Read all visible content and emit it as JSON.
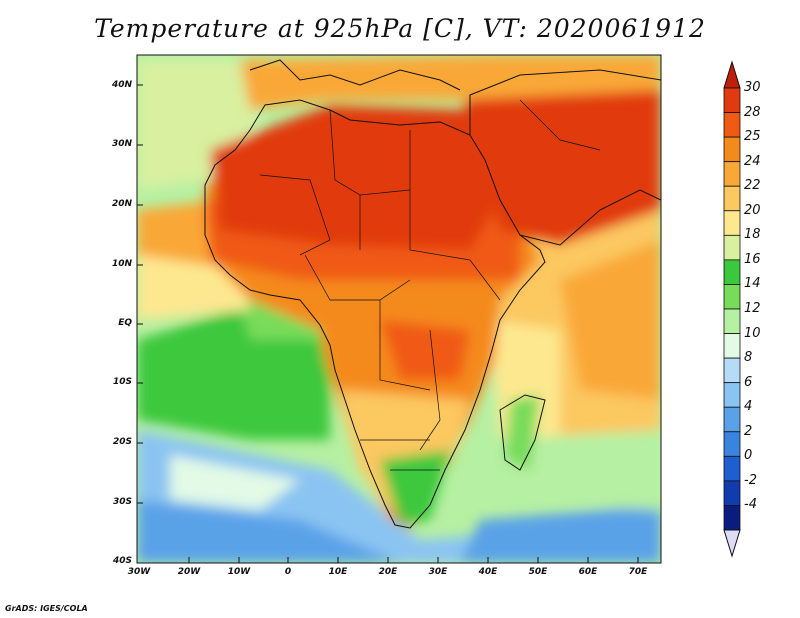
{
  "title": "Temperature at 925hPa [C], VT: 2020061912",
  "credit": "GrADS: IGES/COLA",
  "lat_labels": [
    "40N",
    "30N",
    "20N",
    "10N",
    "EQ",
    "10S",
    "20S",
    "30S",
    "40S"
  ],
  "lon_labels": [
    "30W",
    "20W",
    "10W",
    "0",
    "10E",
    "20E",
    "30E",
    "40E",
    "50E",
    "60E",
    "70E"
  ],
  "colorbar": {
    "labels": [
      "30",
      "28",
      "25",
      "24",
      "22",
      "20",
      "18",
      "16",
      "14",
      "12",
      "10",
      "8",
      "6",
      "4",
      "2",
      "0",
      "-2",
      "-4"
    ],
    "colors": [
      "#e13a10",
      "#f05a14",
      "#f58a1c",
      "#f9a838",
      "#fcc860",
      "#fde890",
      "#d8f0a0",
      "#3cc83c",
      "#78dc5a",
      "#b6f0a2",
      "#e2fae6",
      "#b4dcf8",
      "#8ac4f2",
      "#5aa2e8",
      "#3a84e0",
      "#1e5ed0",
      "#103cb0",
      "#0a1c80"
    ],
    "top_color": "#c01e08",
    "bottom_color": "#dcdcf8"
  },
  "regions": [
    {
      "name": "sahara-hot-region",
      "color": "#e13a10"
    },
    {
      "name": "arabia-hot-region",
      "color": "#e13a10"
    },
    {
      "name": "sahel-region",
      "color": "#f05a14"
    },
    {
      "name": "central-africa-region",
      "color": "#f58a1c"
    },
    {
      "name": "southern-africa-region",
      "color": "#fcc860"
    },
    {
      "name": "south-atlantic-region",
      "color": "#3cc83c"
    },
    {
      "name": "indian-ocean-region",
      "color": "#fcc860"
    },
    {
      "name": "southern-ocean-region",
      "color": "#8ac4f2"
    }
  ]
}
